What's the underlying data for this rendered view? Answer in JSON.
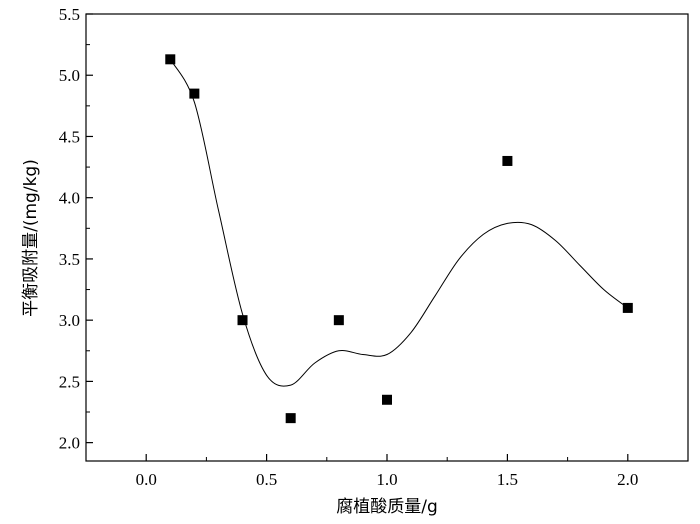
{
  "chart_data": {
    "type": "scatter",
    "xlabel": "腐植酸质量/g",
    "ylabel": "平衡吸附量/(mg/kg)",
    "xlim": [
      -0.25,
      2.25
    ],
    "ylim": [
      1.85,
      5.5
    ],
    "x_ticks": [
      "0.0",
      "0.5",
      "1.0",
      "1.5",
      "2.0"
    ],
    "y_ticks": [
      "2.0",
      "2.5",
      "3.0",
      "3.5",
      "4.0",
      "4.5",
      "5.0",
      "5.5"
    ],
    "x_tick_values": [
      0.0,
      0.5,
      1.0,
      1.5,
      2.0
    ],
    "y_tick_values": [
      2.0,
      2.5,
      3.0,
      3.5,
      4.0,
      4.5,
      5.0,
      5.5
    ],
    "grid": false,
    "legend": "none",
    "marker": "filled-square",
    "marker_color": "#000000",
    "curve_color": "#000000",
    "series": [
      {
        "points": [
          {
            "x": 0.1,
            "y": 5.13
          },
          {
            "x": 0.2,
            "y": 4.85
          },
          {
            "x": 0.4,
            "y": 3.0
          },
          {
            "x": 0.6,
            "y": 2.2
          },
          {
            "x": 0.8,
            "y": 3.0
          },
          {
            "x": 1.0,
            "y": 2.35
          },
          {
            "x": 1.5,
            "y": 4.3
          },
          {
            "x": 2.0,
            "y": 3.1
          }
        ],
        "fit_curve": [
          [
            0.1,
            5.13
          ],
          [
            0.2,
            4.78
          ],
          [
            0.3,
            3.9
          ],
          [
            0.4,
            3.05
          ],
          [
            0.5,
            2.55
          ],
          [
            0.6,
            2.47
          ],
          [
            0.7,
            2.65
          ],
          [
            0.8,
            2.75
          ],
          [
            0.9,
            2.72
          ],
          [
            1.0,
            2.72
          ],
          [
            1.1,
            2.9
          ],
          [
            1.2,
            3.2
          ],
          [
            1.3,
            3.5
          ],
          [
            1.4,
            3.7
          ],
          [
            1.5,
            3.79
          ],
          [
            1.6,
            3.78
          ],
          [
            1.7,
            3.65
          ],
          [
            1.8,
            3.45
          ],
          [
            1.9,
            3.25
          ],
          [
            2.0,
            3.1
          ]
        ]
      }
    ]
  }
}
